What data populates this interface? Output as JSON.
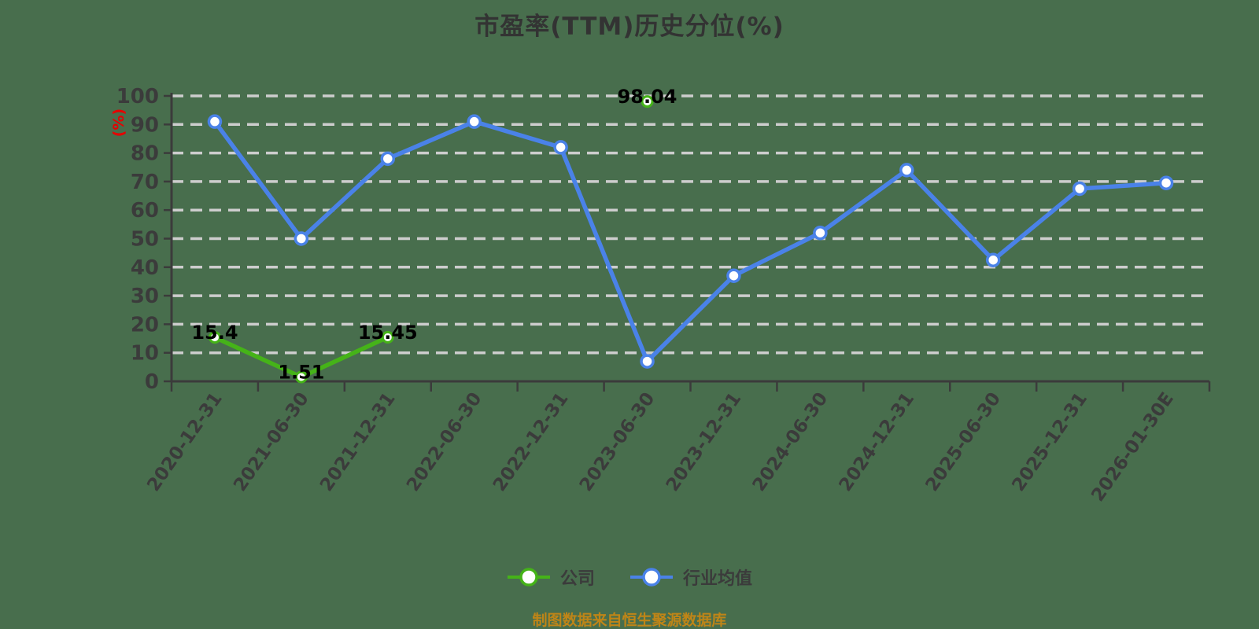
{
  "chart_data": {
    "type": "line",
    "title": "市盈率(TTM)历史分位(%)",
    "ylabel": "(%)",
    "ylim": [
      0,
      100
    ],
    "yticks": [
      0,
      10,
      20,
      30,
      40,
      50,
      60,
      70,
      80,
      90,
      100
    ],
    "grid": true,
    "grid_style": "dashed",
    "legend_position": "bottom",
    "categories": [
      "2020-12-31",
      "2021-06-30",
      "2021-12-31",
      "2022-06-30",
      "2022-12-31",
      "2023-06-30",
      "2023-12-31",
      "2024-06-30",
      "2024-12-31",
      "2025-06-30",
      "2025-12-31",
      "2026-01-30E"
    ],
    "series": [
      {
        "name": "公司",
        "color": "#45b318",
        "values": [
          15.4,
          1.51,
          15.45,
          null,
          null,
          98.04,
          null,
          null,
          null,
          null,
          null,
          null
        ],
        "point_labels": [
          "15.4",
          "1.51",
          "15.45",
          null,
          null,
          "98.04",
          null,
          null,
          null,
          null,
          null,
          null
        ]
      },
      {
        "name": "行业均值",
        "color": "#4a82e8",
        "values": [
          91,
          50,
          78,
          91,
          82,
          7,
          37,
          52,
          74,
          42.5,
          67.5,
          69.5
        ],
        "point_labels": [
          null,
          null,
          null,
          null,
          null,
          null,
          null,
          null,
          null,
          null,
          null,
          null
        ]
      }
    ],
    "source_note": "制图数据来自恒生聚源数据库"
  },
  "style": {
    "background": "#486e4d",
    "grid_color": "#cdcdcd",
    "axis_color": "#3b3b3b",
    "tick_label_color": "#3b3b3b",
    "ylabel_color": "#e60000",
    "title_color": "#333333",
    "point_label_color": "#000000",
    "point_fill": "#ffffff",
    "source_color": "#bf8517"
  }
}
